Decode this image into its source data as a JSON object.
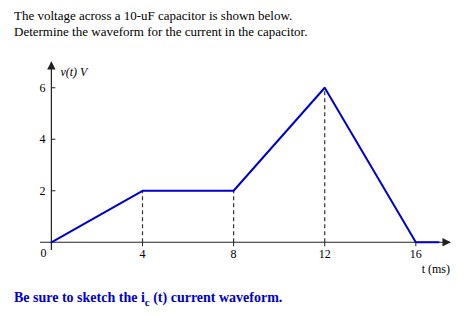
{
  "chart_data": {
    "type": "line",
    "title": "The voltage across a 10-uF capacitor is shown below.\nDetermine the waveform for the current in the capacitor.",
    "footer_text": "Be sure to sketch the i",
    "footer_sub": "c",
    "footer_end": " (t) current waveform.",
    "footer_color": "#0000CC",
    "x_label": "t (ms)",
    "y_label": "v(t) V",
    "x": [
      0,
      0,
      4,
      8,
      12,
      16,
      17
    ],
    "values": [
      0,
      0,
      2,
      2,
      6,
      0,
      0
    ],
    "color": "#0000CC",
    "dashed_lines": [
      {
        "x": 4,
        "ymax": 2
      },
      {
        "x": 8,
        "ymax": 2
      },
      {
        "x": 12,
        "ymax": 6
      }
    ],
    "dashed_color": "#333333",
    "annotations": [
      {
        "text": "0",
        "x": 0,
        "y": 0
      }
    ],
    "xlim": [
      -0.5,
      17.5
    ],
    "ylim": [
      -0.3,
      7.0
    ],
    "xticks": [
      4,
      8,
      12,
      16
    ],
    "yticks": [
      2,
      4,
      6
    ],
    "grid": false
  }
}
